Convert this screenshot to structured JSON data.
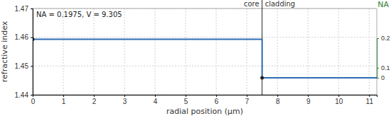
{
  "chart_data": {
    "type": "line",
    "xlabel": "radial position (µm)",
    "ylabel": "refractive index",
    "y2label": "NA",
    "annotation": "NA = 0.1975, V = 9.305",
    "boundary": 7.5,
    "region_labels": [
      "core",
      "cladding"
    ],
    "series": [
      {
        "type": "line",
        "color": "#2f6db5",
        "x": [
          0,
          7.5,
          7.5,
          11.25
        ],
        "values": [
          1.4593,
          1.4593,
          1.4459,
          1.4459
        ]
      },
      {
        "type": "scatter",
        "marker": "circle",
        "color": "#222222",
        "x": [
          0,
          7.5
        ],
        "values": [
          1.4593,
          1.4459
        ]
      }
    ],
    "xlim": [
      0,
      11.25
    ],
    "xticks": [
      0,
      1,
      2,
      3,
      4,
      5,
      6,
      7,
      8,
      9,
      10,
      11
    ],
    "ylim": [
      1.44,
      1.47
    ],
    "yticks": [
      1.44,
      1.45,
      1.46,
      1.47
    ],
    "y2lim": [
      0,
      0.2
    ],
    "y2ticks": [
      0,
      0.1,
      0.2
    ],
    "grid": true
  }
}
